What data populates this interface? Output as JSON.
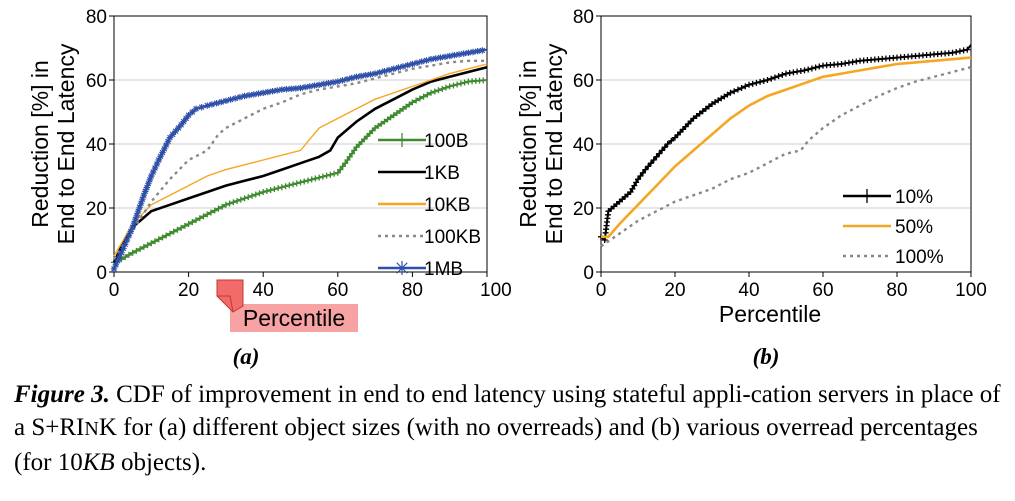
{
  "chart_data": [
    {
      "type": "line",
      "subfigure_label": "(a)",
      "xlabel": "Percentile",
      "ylabel_lines": [
        "Reduction [%] in",
        "End to End Latency"
      ],
      "xlim": [
        0,
        100
      ],
      "ylim": [
        0,
        80
      ],
      "xticks": [
        "0",
        "20",
        "40",
        "60",
        "80",
        "100"
      ],
      "yticks": [
        "0",
        "20",
        "40",
        "60",
        "80"
      ],
      "grid": "horizontal",
      "legend_position": "lower-right",
      "series": [
        {
          "name": "100B",
          "color": "#3e8a2e",
          "dash": "solid",
          "marker": "plus",
          "points": [
            [
              0,
              3
            ],
            [
              2,
              4
            ],
            [
              5,
              6
            ],
            [
              10,
              9
            ],
            [
              15,
              12
            ],
            [
              20,
              15
            ],
            [
              25,
              18
            ],
            [
              30,
              21
            ],
            [
              35,
              23
            ],
            [
              40,
              25
            ],
            [
              45,
              26.5
            ],
            [
              50,
              28
            ],
            [
              55,
              29.5
            ],
            [
              60,
              31
            ],
            [
              62,
              34
            ],
            [
              65,
              39
            ],
            [
              70,
              45
            ],
            [
              75,
              49
            ],
            [
              80,
              53
            ],
            [
              85,
              56
            ],
            [
              90,
              58
            ],
            [
              95,
              59.5
            ],
            [
              100,
              60
            ]
          ]
        },
        {
          "name": "1KB",
          "color": "#000000",
          "dash": "solid",
          "marker": "none",
          "points": [
            [
              0,
              3
            ],
            [
              2,
              8
            ],
            [
              5,
              14
            ],
            [
              10,
              19
            ],
            [
              15,
              21
            ],
            [
              20,
              23
            ],
            [
              25,
              25
            ],
            [
              30,
              27
            ],
            [
              35,
              28.5
            ],
            [
              40,
              30
            ],
            [
              45,
              32
            ],
            [
              50,
              34
            ],
            [
              55,
              36
            ],
            [
              58,
              38
            ],
            [
              60,
              42
            ],
            [
              65,
              47
            ],
            [
              70,
              51
            ],
            [
              75,
              54
            ],
            [
              80,
              57
            ],
            [
              85,
              59.5
            ],
            [
              90,
              61
            ],
            [
              95,
              62.5
            ],
            [
              100,
              64
            ]
          ]
        },
        {
          "name": "10KB",
          "color": "#f5a623",
          "dash": "solid",
          "marker": "none",
          "points": [
            [
              0,
              5
            ],
            [
              3,
              11
            ],
            [
              5,
              15
            ],
            [
              10,
              21
            ],
            [
              15,
              24
            ],
            [
              20,
              27
            ],
            [
              25,
              30
            ],
            [
              30,
              32
            ],
            [
              35,
              33.5
            ],
            [
              40,
              35
            ],
            [
              45,
              36.5
            ],
            [
              50,
              38
            ],
            [
              55,
              45
            ],
            [
              60,
              48
            ],
            [
              65,
              51
            ],
            [
              70,
              54
            ],
            [
              75,
              56
            ],
            [
              80,
              58
            ],
            [
              85,
              60
            ],
            [
              90,
              62
            ],
            [
              95,
              63.5
            ],
            [
              100,
              65
            ]
          ]
        },
        {
          "name": "100KB",
          "color": "#888888",
          "dash": "dotted",
          "marker": "none",
          "points": [
            [
              0,
              4
            ],
            [
              5,
              13
            ],
            [
              10,
              22
            ],
            [
              15,
              29
            ],
            [
              20,
              35
            ],
            [
              25,
              38
            ],
            [
              28,
              43
            ],
            [
              30,
              45
            ],
            [
              35,
              48
            ],
            [
              40,
              51
            ],
            [
              45,
              53
            ],
            [
              50,
              55.5
            ],
            [
              55,
              57
            ],
            [
              60,
              58
            ],
            [
              65,
              59
            ],
            [
              70,
              60.5
            ],
            [
              75,
              62
            ],
            [
              80,
              63.5
            ],
            [
              85,
              64.5
            ],
            [
              90,
              65.5
            ],
            [
              95,
              66
            ],
            [
              100,
              66
            ]
          ]
        },
        {
          "name": "1MB",
          "color": "#2e4fa8",
          "dash": "solid",
          "marker": "asterisk",
          "points": [
            [
              0,
              1
            ],
            [
              2,
              6
            ],
            [
              5,
              14
            ],
            [
              8,
              24
            ],
            [
              10,
              30
            ],
            [
              12,
              35
            ],
            [
              15,
              42
            ],
            [
              18,
              46
            ],
            [
              20,
              49
            ],
            [
              22,
              51
            ],
            [
              25,
              52
            ],
            [
              30,
              53.5
            ],
            [
              35,
              55
            ],
            [
              40,
              56
            ],
            [
              45,
              57
            ],
            [
              50,
              57.5
            ],
            [
              55,
              58.5
            ],
            [
              60,
              59.5
            ],
            [
              65,
              61
            ],
            [
              70,
              62
            ],
            [
              75,
              63.5
            ],
            [
              80,
              65
            ],
            [
              85,
              66.5
            ],
            [
              90,
              67.5
            ],
            [
              95,
              68.5
            ],
            [
              100,
              69.5
            ]
          ]
        }
      ]
    },
    {
      "type": "line",
      "subfigure_label": "(b)",
      "xlabel": "Percentile",
      "ylabel_lines": [
        "Reduction [%] in",
        "End to End Latency"
      ],
      "xlim": [
        0,
        100
      ],
      "ylim": [
        0,
        80
      ],
      "xticks": [
        "0",
        "20",
        "40",
        "60",
        "80",
        "100"
      ],
      "yticks": [
        "0",
        "20",
        "40",
        "60",
        "80"
      ],
      "grid": "horizontal",
      "legend_position": "lower-right",
      "series": [
        {
          "name": "10%",
          "color": "#000000",
          "dash": "solid",
          "marker": "plus",
          "points": [
            [
              0,
              11
            ],
            [
              1,
              10
            ],
            [
              2,
              19
            ],
            [
              5,
              22
            ],
            [
              8,
              25
            ],
            [
              10,
              29
            ],
            [
              12,
              32
            ],
            [
              15,
              36
            ],
            [
              18,
              40
            ],
            [
              20,
              42
            ],
            [
              25,
              48
            ],
            [
              30,
              52.5
            ],
            [
              35,
              56
            ],
            [
              40,
              58.5
            ],
            [
              45,
              60
            ],
            [
              50,
              62
            ],
            [
              55,
              63
            ],
            [
              60,
              64.5
            ],
            [
              65,
              65
            ],
            [
              70,
              66
            ],
            [
              75,
              66.5
            ],
            [
              80,
              67
            ],
            [
              85,
              67.5
            ],
            [
              90,
              68
            ],
            [
              95,
              68.5
            ],
            [
              99,
              69.5
            ],
            [
              100,
              71
            ]
          ]
        },
        {
          "name": "50%",
          "color": "#f5a623",
          "dash": "solid",
          "marker": "none",
          "points": [
            [
              0,
              11
            ],
            [
              2,
              11
            ],
            [
              5,
              15
            ],
            [
              10,
              21
            ],
            [
              15,
              27
            ],
            [
              20,
              33
            ],
            [
              25,
              38
            ],
            [
              30,
              43
            ],
            [
              35,
              48
            ],
            [
              40,
              52
            ],
            [
              45,
              55
            ],
            [
              50,
              57
            ],
            [
              55,
              59
            ],
            [
              60,
              61
            ],
            [
              65,
              62
            ],
            [
              70,
              63
            ],
            [
              75,
              64
            ],
            [
              80,
              65
            ],
            [
              85,
              65.5
            ],
            [
              90,
              66
            ],
            [
              95,
              66.5
            ],
            [
              100,
              67
            ]
          ]
        },
        {
          "name": "100%",
          "color": "#888888",
          "dash": "dotted",
          "marker": "none",
          "points": [
            [
              0,
              8
            ],
            [
              5,
              12
            ],
            [
              10,
              16
            ],
            [
              15,
              19
            ],
            [
              20,
              22
            ],
            [
              25,
              24
            ],
            [
              30,
              26
            ],
            [
              35,
              29
            ],
            [
              40,
              31
            ],
            [
              45,
              34
            ],
            [
              50,
              37
            ],
            [
              54,
              38
            ],
            [
              56,
              41
            ],
            [
              60,
              45
            ],
            [
              65,
              49
            ],
            [
              70,
              52
            ],
            [
              75,
              55
            ],
            [
              80,
              57.5
            ],
            [
              85,
              59.5
            ],
            [
              90,
              61
            ],
            [
              95,
              62.5
            ],
            [
              100,
              64
            ]
          ]
        }
      ]
    }
  ],
  "caption": {
    "label": "Figure 3.",
    "text_before": "CDF of improvement in end to end latency using stateful appli-cation servers in place of a",
    "sys_name_1": "S+R",
    "sys_name_2": "I",
    "sys_name_3": "N",
    "sys_name_4": "K",
    "text_after": "for (a) different object sizes (with no overreads) and (b) various overread percentages (for 10",
    "kb_unit": "KB",
    "text_end": "objects)."
  },
  "overlay_tag": {
    "color": "#f26b6b",
    "highlight_color": "#f7a3a3"
  }
}
